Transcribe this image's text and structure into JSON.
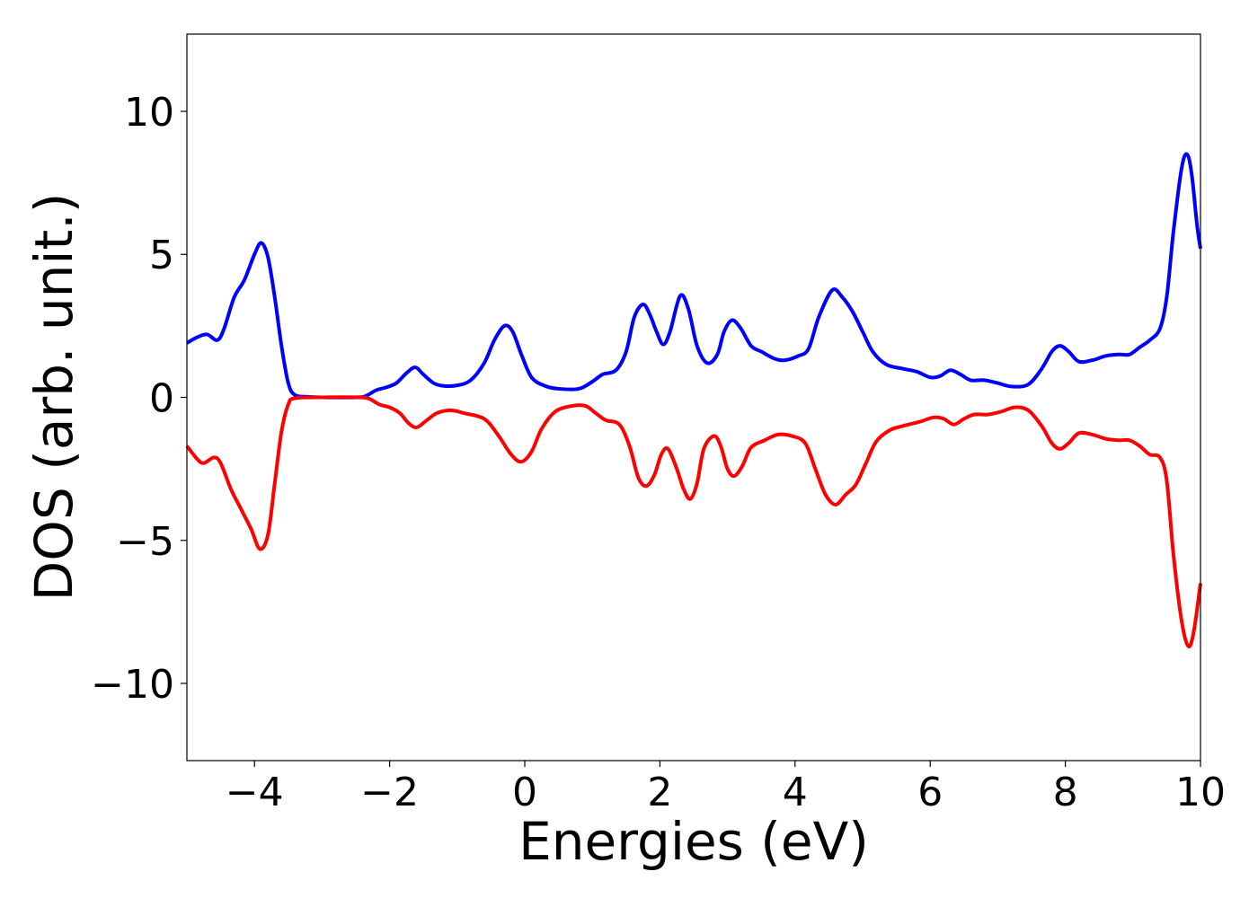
{
  "chart_data": {
    "type": "line",
    "xlabel": "Energies (eV)",
    "ylabel": "DOS (arb. unit.)",
    "xlim": [
      -5,
      10
    ],
    "ylim": [
      -12.7,
      12.7
    ],
    "grid": false,
    "xticks": [
      -4,
      -2,
      0,
      2,
      4,
      6,
      8,
      10
    ],
    "xtick_labels": [
      "−4",
      "−2",
      "0",
      "2",
      "4",
      "6",
      "8",
      "10"
    ],
    "yticks": [
      10,
      5,
      0,
      -5,
      -10
    ],
    "ytick_labels": [
      "10",
      "5",
      "0",
      "−5",
      "−10"
    ],
    "series": [
      {
        "color": "#0000ff",
        "points": [
          [
            -5.0,
            1.9
          ],
          [
            -4.85,
            2.1
          ],
          [
            -4.7,
            2.2
          ],
          [
            -4.55,
            2.0
          ],
          [
            -4.45,
            2.4
          ],
          [
            -4.3,
            3.5
          ],
          [
            -4.15,
            4.1
          ],
          [
            -4.0,
            5.0
          ],
          [
            -3.9,
            5.4
          ],
          [
            -3.8,
            4.9
          ],
          [
            -3.7,
            3.5
          ],
          [
            -3.6,
            1.8
          ],
          [
            -3.5,
            0.5
          ],
          [
            -3.4,
            0.08
          ],
          [
            -3.2,
            0.02
          ],
          [
            -3.0,
            0.0
          ],
          [
            -2.5,
            0.0
          ],
          [
            -2.35,
            0.05
          ],
          [
            -2.2,
            0.25
          ],
          [
            -2.05,
            0.35
          ],
          [
            -1.9,
            0.5
          ],
          [
            -1.75,
            0.85
          ],
          [
            -1.62,
            1.05
          ],
          [
            -1.5,
            0.8
          ],
          [
            -1.35,
            0.5
          ],
          [
            -1.2,
            0.4
          ],
          [
            -1.0,
            0.42
          ],
          [
            -0.8,
            0.6
          ],
          [
            -0.6,
            1.2
          ],
          [
            -0.45,
            2.0
          ],
          [
            -0.3,
            2.5
          ],
          [
            -0.18,
            2.3
          ],
          [
            -0.05,
            1.5
          ],
          [
            0.1,
            0.7
          ],
          [
            0.3,
            0.4
          ],
          [
            0.5,
            0.3
          ],
          [
            0.8,
            0.3
          ],
          [
            1.0,
            0.55
          ],
          [
            1.15,
            0.8
          ],
          [
            1.35,
            0.95
          ],
          [
            1.5,
            1.6
          ],
          [
            1.62,
            2.8
          ],
          [
            1.75,
            3.25
          ],
          [
            1.85,
            2.9
          ],
          [
            1.95,
            2.3
          ],
          [
            2.05,
            1.85
          ],
          [
            2.15,
            2.3
          ],
          [
            2.3,
            3.55
          ],
          [
            2.42,
            3.1
          ],
          [
            2.55,
            1.8
          ],
          [
            2.7,
            1.2
          ],
          [
            2.85,
            1.5
          ],
          [
            2.95,
            2.3
          ],
          [
            3.07,
            2.7
          ],
          [
            3.2,
            2.4
          ],
          [
            3.35,
            1.8
          ],
          [
            3.5,
            1.6
          ],
          [
            3.7,
            1.35
          ],
          [
            3.85,
            1.3
          ],
          [
            4.05,
            1.45
          ],
          [
            4.2,
            1.7
          ],
          [
            4.35,
            2.8
          ],
          [
            4.55,
            3.75
          ],
          [
            4.7,
            3.5
          ],
          [
            4.85,
            3.0
          ],
          [
            5.0,
            2.3
          ],
          [
            5.15,
            1.6
          ],
          [
            5.35,
            1.15
          ],
          [
            5.6,
            1.0
          ],
          [
            5.8,
            0.9
          ],
          [
            6.0,
            0.7
          ],
          [
            6.15,
            0.75
          ],
          [
            6.3,
            0.95
          ],
          [
            6.45,
            0.8
          ],
          [
            6.6,
            0.6
          ],
          [
            6.8,
            0.6
          ],
          [
            7.0,
            0.5
          ],
          [
            7.2,
            0.38
          ],
          [
            7.45,
            0.45
          ],
          [
            7.65,
            1.0
          ],
          [
            7.8,
            1.6
          ],
          [
            7.92,
            1.8
          ],
          [
            8.05,
            1.6
          ],
          [
            8.2,
            1.25
          ],
          [
            8.4,
            1.3
          ],
          [
            8.6,
            1.45
          ],
          [
            8.8,
            1.5
          ],
          [
            8.95,
            1.5
          ],
          [
            9.1,
            1.75
          ],
          [
            9.25,
            2.0
          ],
          [
            9.4,
            2.4
          ],
          [
            9.5,
            3.5
          ],
          [
            9.6,
            5.8
          ],
          [
            9.72,
            8.0
          ],
          [
            9.8,
            8.5
          ],
          [
            9.87,
            7.8
          ],
          [
            9.95,
            6.0
          ],
          [
            10.0,
            5.2
          ]
        ]
      },
      {
        "color": "#ff0000",
        "points": [
          [
            -5.0,
            -1.7
          ],
          [
            -4.85,
            -2.15
          ],
          [
            -4.75,
            -2.3
          ],
          [
            -4.6,
            -2.1
          ],
          [
            -4.5,
            -2.3
          ],
          [
            -4.35,
            -3.2
          ],
          [
            -4.2,
            -3.9
          ],
          [
            -4.05,
            -4.6
          ],
          [
            -3.92,
            -5.3
          ],
          [
            -3.8,
            -4.8
          ],
          [
            -3.7,
            -3.0
          ],
          [
            -3.6,
            -1.2
          ],
          [
            -3.5,
            -0.25
          ],
          [
            -3.4,
            -0.03
          ],
          [
            -3.0,
            0.0
          ],
          [
            -2.45,
            0.0
          ],
          [
            -2.3,
            -0.05
          ],
          [
            -2.15,
            -0.25
          ],
          [
            -2.0,
            -0.35
          ],
          [
            -1.85,
            -0.55
          ],
          [
            -1.72,
            -0.9
          ],
          [
            -1.6,
            -1.05
          ],
          [
            -1.45,
            -0.8
          ],
          [
            -1.3,
            -0.55
          ],
          [
            -1.1,
            -0.45
          ],
          [
            -0.9,
            -0.55
          ],
          [
            -0.6,
            -0.75
          ],
          [
            -0.4,
            -1.3
          ],
          [
            -0.2,
            -2.0
          ],
          [
            -0.05,
            -2.25
          ],
          [
            0.1,
            -1.9
          ],
          [
            0.25,
            -1.1
          ],
          [
            0.45,
            -0.5
          ],
          [
            0.7,
            -0.3
          ],
          [
            0.9,
            -0.3
          ],
          [
            1.05,
            -0.55
          ],
          [
            1.2,
            -0.8
          ],
          [
            1.4,
            -0.95
          ],
          [
            1.55,
            -1.7
          ],
          [
            1.68,
            -2.8
          ],
          [
            1.8,
            -3.1
          ],
          [
            1.92,
            -2.7
          ],
          [
            2.02,
            -2.0
          ],
          [
            2.12,
            -1.8
          ],
          [
            2.25,
            -2.5
          ],
          [
            2.35,
            -3.2
          ],
          [
            2.45,
            -3.55
          ],
          [
            2.55,
            -3.0
          ],
          [
            2.65,
            -1.8
          ],
          [
            2.8,
            -1.35
          ],
          [
            2.9,
            -1.7
          ],
          [
            3.0,
            -2.5
          ],
          [
            3.1,
            -2.75
          ],
          [
            3.22,
            -2.4
          ],
          [
            3.35,
            -1.75
          ],
          [
            3.55,
            -1.5
          ],
          [
            3.75,
            -1.3
          ],
          [
            3.95,
            -1.35
          ],
          [
            4.15,
            -1.6
          ],
          [
            4.3,
            -2.5
          ],
          [
            4.45,
            -3.4
          ],
          [
            4.6,
            -3.75
          ],
          [
            4.75,
            -3.4
          ],
          [
            4.9,
            -3.05
          ],
          [
            5.05,
            -2.3
          ],
          [
            5.2,
            -1.55
          ],
          [
            5.4,
            -1.15
          ],
          [
            5.6,
            -1.0
          ],
          [
            5.85,
            -0.85
          ],
          [
            6.05,
            -0.7
          ],
          [
            6.2,
            -0.75
          ],
          [
            6.35,
            -0.95
          ],
          [
            6.5,
            -0.75
          ],
          [
            6.65,
            -0.6
          ],
          [
            6.85,
            -0.6
          ],
          [
            7.05,
            -0.5
          ],
          [
            7.25,
            -0.35
          ],
          [
            7.45,
            -0.45
          ],
          [
            7.65,
            -1.0
          ],
          [
            7.8,
            -1.6
          ],
          [
            7.92,
            -1.8
          ],
          [
            8.05,
            -1.6
          ],
          [
            8.2,
            -1.25
          ],
          [
            8.4,
            -1.3
          ],
          [
            8.6,
            -1.45
          ],
          [
            8.8,
            -1.5
          ],
          [
            8.95,
            -1.5
          ],
          [
            9.1,
            -1.7
          ],
          [
            9.25,
            -2.0
          ],
          [
            9.4,
            -2.1
          ],
          [
            9.5,
            -2.9
          ],
          [
            9.6,
            -5.5
          ],
          [
            9.72,
            -7.8
          ],
          [
            9.82,
            -8.7
          ],
          [
            9.9,
            -8.2
          ],
          [
            10.0,
            -6.5
          ]
        ]
      }
    ]
  }
}
